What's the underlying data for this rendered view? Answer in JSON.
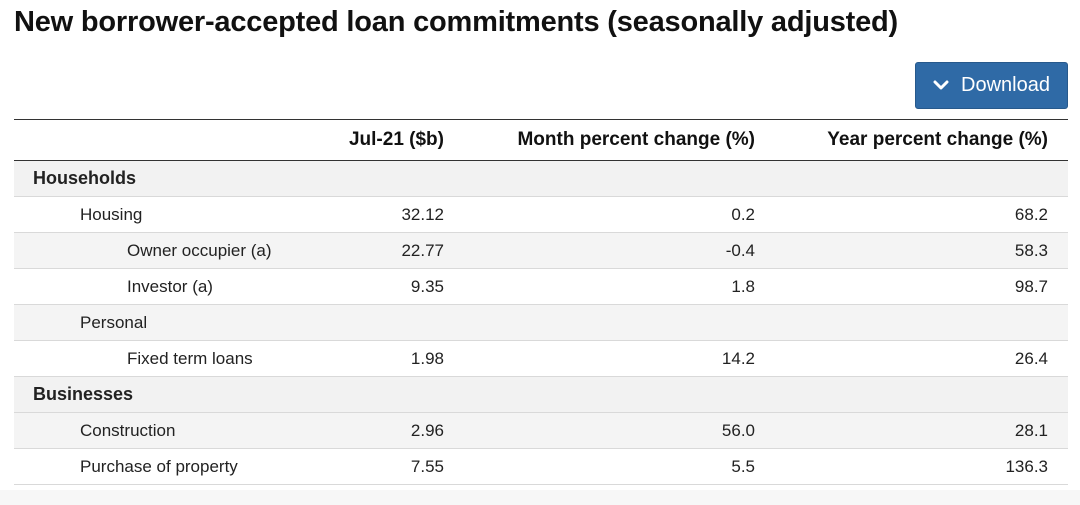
{
  "page": {
    "title": "New borrower-accepted loan commitments (seasonally adjusted)"
  },
  "toolbar": {
    "download_label": "Download",
    "download_icon": "chevron-down-icon"
  },
  "table": {
    "headers": {
      "label": "",
      "value": "Jul-21 ($b)",
      "month": "Month percent change (%)",
      "year": "Year percent change (%)"
    },
    "rows": [
      {
        "label": "Households",
        "type": "group",
        "level": 0,
        "value": "",
        "month": "",
        "year": ""
      },
      {
        "label": "Housing",
        "type": "row",
        "level": 1,
        "value": "32.12",
        "month": "0.2",
        "year": "68.2"
      },
      {
        "label": "Owner occupier (a)",
        "type": "row",
        "level": 2,
        "value": "22.77",
        "month": "-0.4",
        "year": "58.3"
      },
      {
        "label": "Investor (a)",
        "type": "row",
        "level": 2,
        "value": "9.35",
        "month": "1.8",
        "year": "98.7"
      },
      {
        "label": "Personal",
        "type": "row",
        "level": 1,
        "value": "",
        "month": "",
        "year": ""
      },
      {
        "label": "Fixed term loans",
        "type": "row",
        "level": 2,
        "value": "1.98",
        "month": "14.2",
        "year": "26.4"
      },
      {
        "label": "Businesses",
        "type": "group",
        "level": 0,
        "value": "",
        "month": "",
        "year": ""
      },
      {
        "label": "Construction",
        "type": "row",
        "level": 1,
        "value": "2.96",
        "month": "56.0",
        "year": "28.1"
      },
      {
        "label": "Purchase of property",
        "type": "row",
        "level": 1,
        "value": "7.55",
        "month": "5.5",
        "year": "136.3"
      }
    ]
  }
}
